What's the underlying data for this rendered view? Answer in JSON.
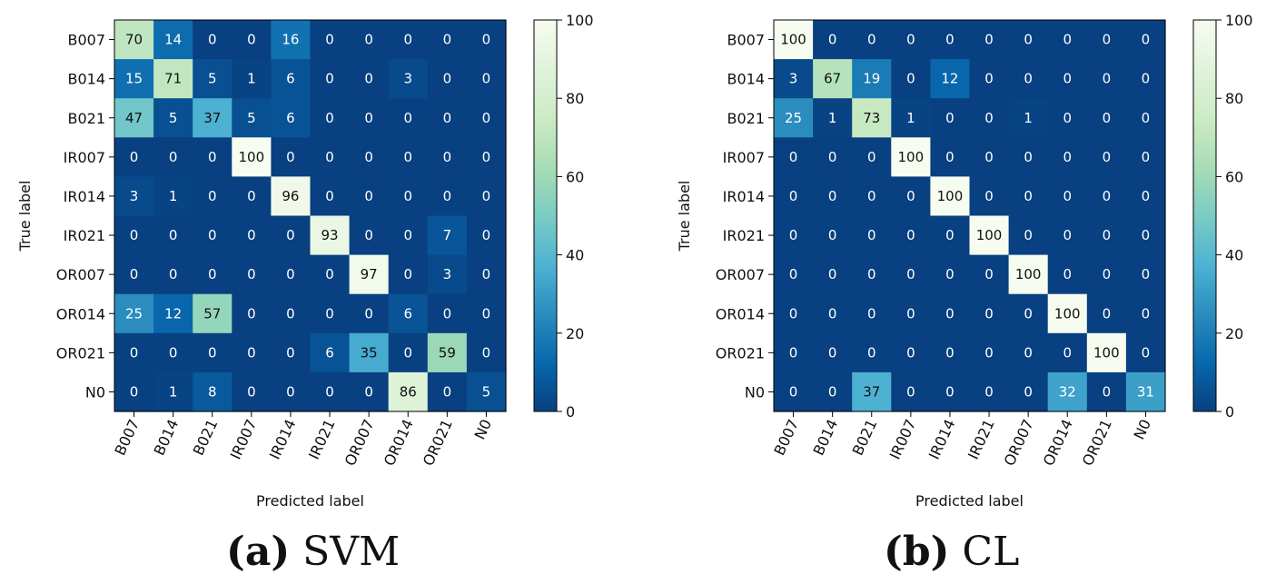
{
  "chart_data": [
    {
      "type": "heatmap",
      "title": "",
      "xlabel": "Predicted label",
      "ylabel": "True label",
      "labels": [
        "B007",
        "B014",
        "B021",
        "IR007",
        "IR014",
        "IR021",
        "OR007",
        "OR014",
        "OR021",
        "N0"
      ],
      "colorbar": {
        "min": 0,
        "max": 100,
        "ticks": [
          "0",
          "20",
          "40",
          "60",
          "80",
          "100"
        ]
      },
      "values": [
        [
          70,
          14,
          0,
          0,
          16,
          0,
          0,
          0,
          0,
          0
        ],
        [
          15,
          71,
          5,
          1,
          6,
          0,
          0,
          3,
          0,
          0
        ],
        [
          47,
          5,
          37,
          5,
          6,
          0,
          0,
          0,
          0,
          0
        ],
        [
          0,
          0,
          0,
          100,
          0,
          0,
          0,
          0,
          0,
          0
        ],
        [
          3,
          1,
          0,
          0,
          96,
          0,
          0,
          0,
          0,
          0
        ],
        [
          0,
          0,
          0,
          0,
          0,
          93,
          0,
          0,
          7,
          0
        ],
        [
          0,
          0,
          0,
          0,
          0,
          0,
          97,
          0,
          3,
          0
        ],
        [
          25,
          12,
          57,
          0,
          0,
          0,
          0,
          6,
          0,
          0
        ],
        [
          0,
          0,
          0,
          0,
          0,
          6,
          35,
          0,
          59,
          0
        ],
        [
          0,
          1,
          8,
          0,
          0,
          0,
          0,
          86,
          0,
          5
        ]
      ]
    },
    {
      "type": "heatmap",
      "title": "",
      "xlabel": "Predicted label",
      "ylabel": "True label",
      "labels": [
        "B007",
        "B014",
        "B021",
        "IR007",
        "IR014",
        "IR021",
        "OR007",
        "OR014",
        "OR021",
        "N0"
      ],
      "colorbar": {
        "min": 0,
        "max": 100,
        "ticks": [
          "0",
          "20",
          "40",
          "60",
          "80",
          "100"
        ]
      },
      "values": [
        [
          100,
          0,
          0,
          0,
          0,
          0,
          0,
          0,
          0,
          0
        ],
        [
          3,
          67,
          19,
          0,
          12,
          0,
          0,
          0,
          0,
          0
        ],
        [
          25,
          1,
          73,
          1,
          0,
          0,
          1,
          0,
          0,
          0
        ],
        [
          0,
          0,
          0,
          100,
          0,
          0,
          0,
          0,
          0,
          0
        ],
        [
          0,
          0,
          0,
          0,
          100,
          0,
          0,
          0,
          0,
          0
        ],
        [
          0,
          0,
          0,
          0,
          0,
          100,
          0,
          0,
          0,
          0
        ],
        [
          0,
          0,
          0,
          0,
          0,
          0,
          100,
          0,
          0,
          0
        ],
        [
          0,
          0,
          0,
          0,
          0,
          0,
          0,
          100,
          0,
          0
        ],
        [
          0,
          0,
          0,
          0,
          0,
          0,
          0,
          0,
          100,
          0
        ],
        [
          0,
          0,
          37,
          0,
          0,
          0,
          0,
          32,
          0,
          31
        ]
      ]
    }
  ],
  "captions": {
    "a": {
      "letter": "(a)",
      "text": "SVM"
    },
    "b": {
      "letter": "(b)",
      "text": "CL"
    }
  }
}
